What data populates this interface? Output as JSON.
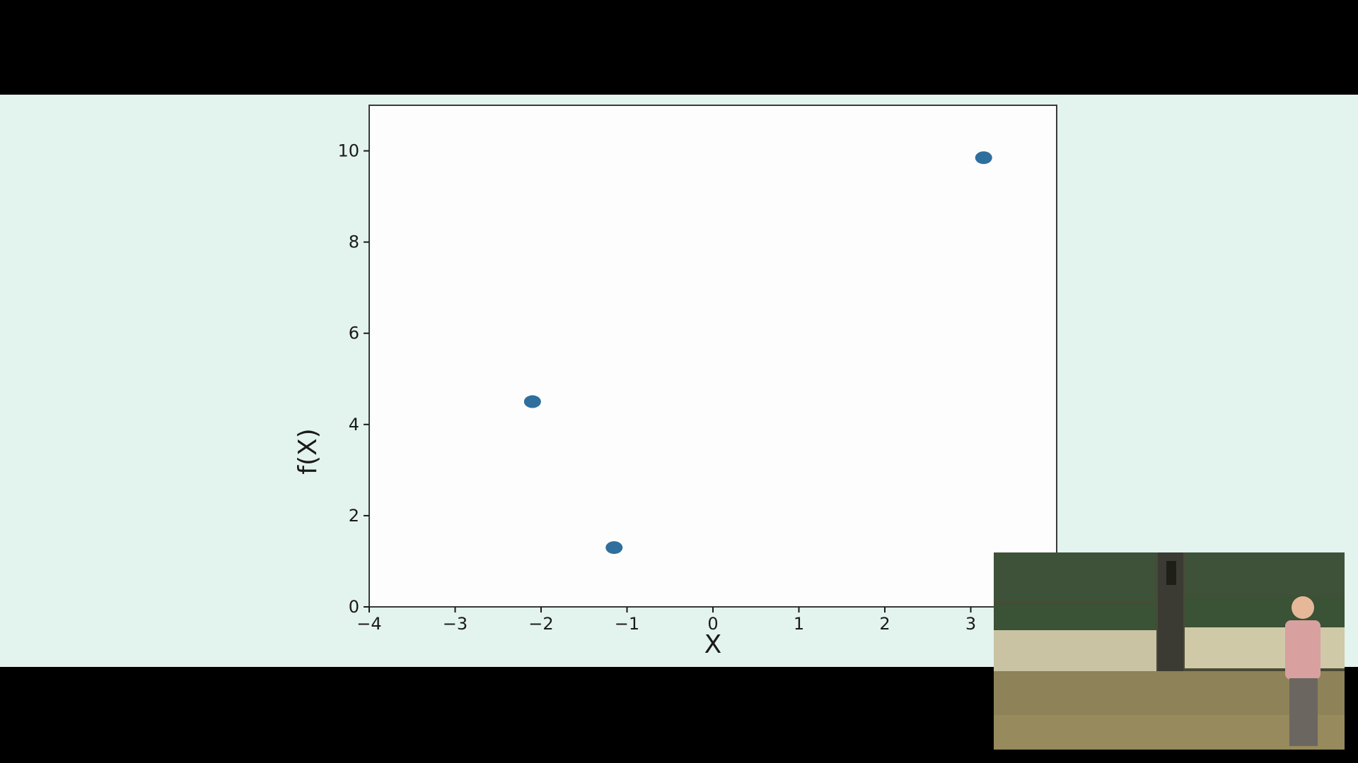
{
  "chart_data": {
    "type": "scatter",
    "title": "",
    "xlabel": "X",
    "ylabel": "f(X)",
    "xlim": [
      -4,
      4
    ],
    "ylim": [
      0,
      11
    ],
    "xticks": [
      -4,
      -3,
      -2,
      -1,
      0,
      1,
      2,
      3
    ],
    "xtick_labels": [
      "−4",
      "−3",
      "−2",
      "−1",
      "0",
      "1",
      "2",
      "3"
    ],
    "yticks": [
      0,
      2,
      4,
      6,
      8,
      10
    ],
    "ytick_labels": [
      "0",
      "2",
      "4",
      "6",
      "8",
      "10"
    ],
    "grid": false,
    "points": [
      {
        "x": -2.1,
        "y": 4.5
      },
      {
        "x": -1.15,
        "y": 1.3
      },
      {
        "x": 3.15,
        "y": 9.85
      }
    ],
    "marker_color": "#2e6f9e"
  },
  "colors": {
    "slide_background": "#e3f3ed",
    "letterbox": "#000000",
    "plot_background": "#fdfdfd"
  },
  "webcam": {
    "description_icon": "presenter-video-icon"
  }
}
